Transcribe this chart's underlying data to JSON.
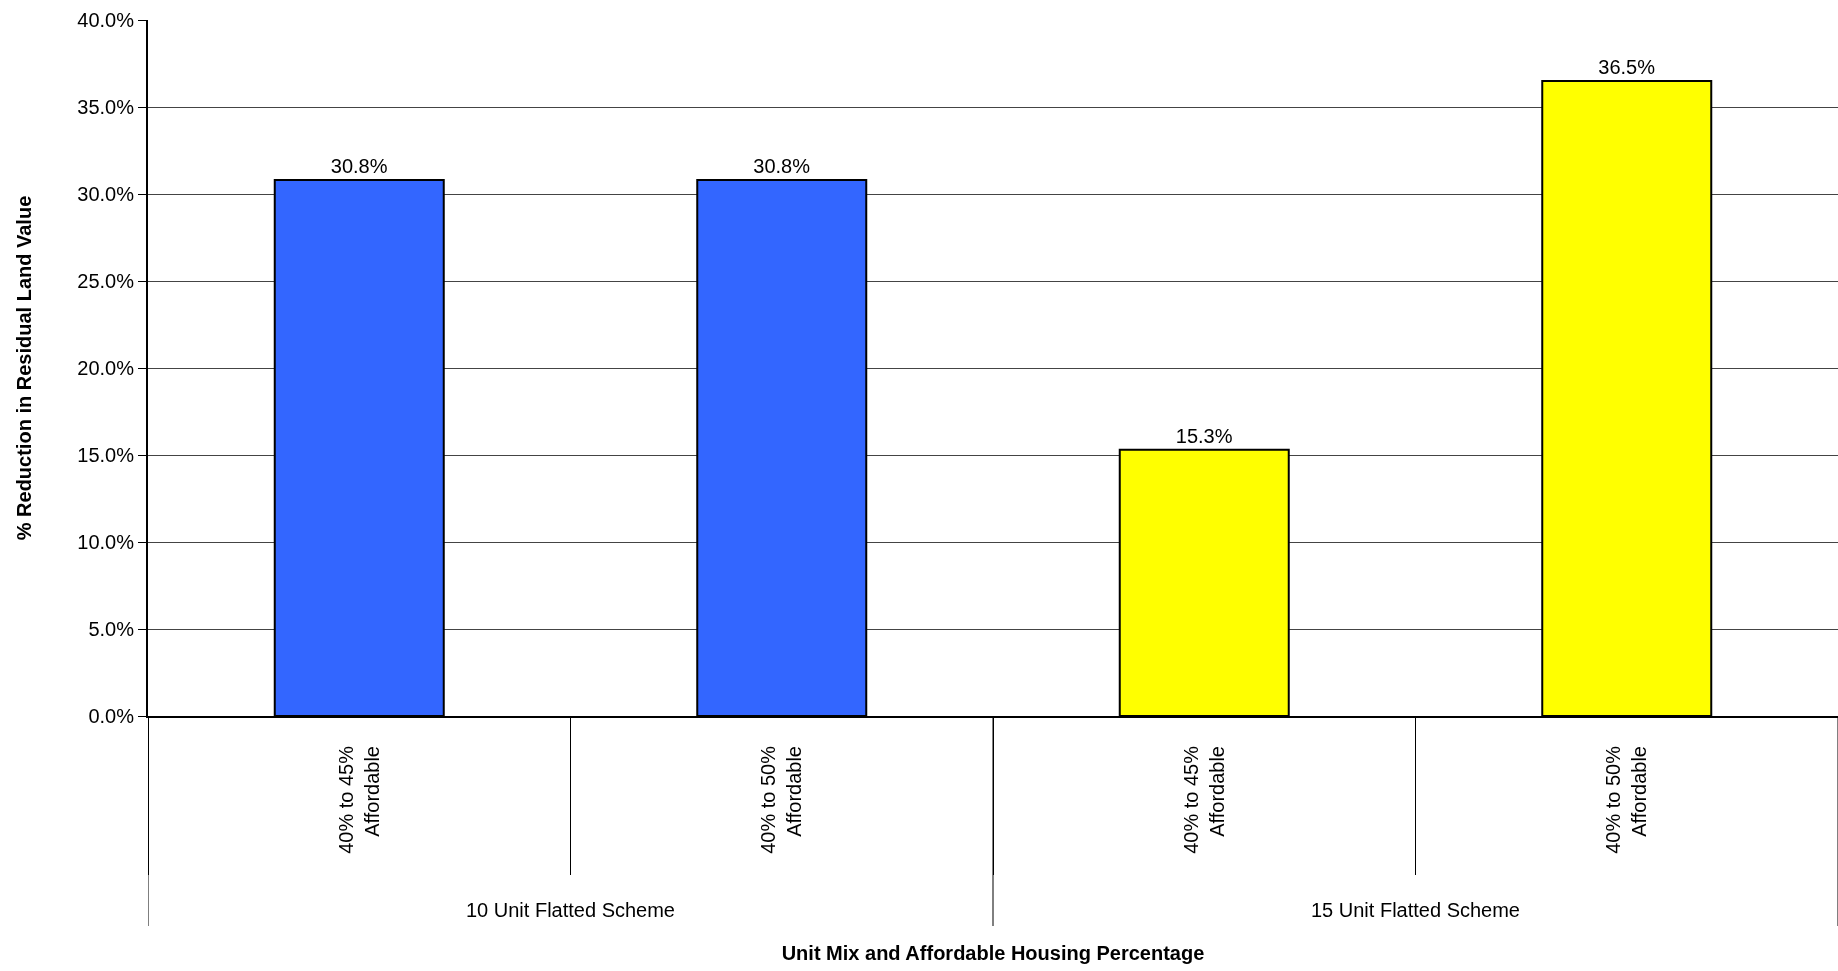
{
  "chart_data": {
    "type": "bar",
    "xlabel": "Unit Mix and Affordable Housing Percentage",
    "ylabel": "% Reduction in Residual Land Value",
    "categories": [
      "40% to 45% Affordable",
      "40% to 50% Affordable",
      "40% to 45% Affordable",
      "40% to 50% Affordable"
    ],
    "values": [
      30.8,
      30.8,
      15.3,
      36.5
    ],
    "colors": [
      "#3366ff",
      "#3366ff",
      "#ffff00",
      "#ffff00"
    ],
    "value_labels": [
      "30.8%",
      "30.8%",
      "15.3%",
      "36.5%"
    ],
    "annotations": [
      "10 Unit Flatted Scheme",
      "15 Unit Flatted Scheme"
    ],
    "ylim": [
      0,
      40
    ],
    "yticks": [
      {
        "value": 0,
        "label": "0.0%"
      },
      {
        "value": 5,
        "label": "5.0%"
      },
      {
        "value": 10,
        "label": "10.0%"
      },
      {
        "value": 15,
        "label": "15.0%"
      },
      {
        "value": 20,
        "label": "20.0%"
      },
      {
        "value": 25,
        "label": "25.0%"
      },
      {
        "value": 30,
        "label": "30.0%"
      },
      {
        "value": 35,
        "label": "35.0%"
      },
      {
        "value": 40,
        "label": "40.0%"
      }
    ],
    "grid": "y"
  }
}
